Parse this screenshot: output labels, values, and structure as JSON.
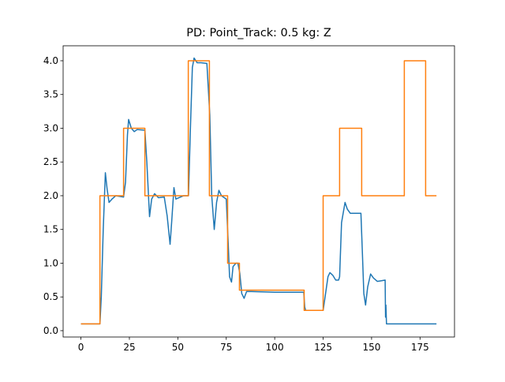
{
  "chart_data": {
    "type": "line",
    "title": "PD: Point_Track: 0.5 kg: Z",
    "xlim": [
      -9.2,
      192.8
    ],
    "ylim": [
      -0.094,
      4.222
    ],
    "xticks": [
      0,
      25,
      50,
      75,
      100,
      125,
      150,
      175
    ],
    "yticks": [
      {
        "value": 0,
        "label": "0.0"
      },
      {
        "value": 0.5,
        "label": "0.5"
      },
      {
        "value": 1,
        "label": "1.0"
      },
      {
        "value": 1.5,
        "label": "1.5"
      },
      {
        "value": 2,
        "label": "2.0"
      },
      {
        "value": 2.5,
        "label": "2.5"
      },
      {
        "value": 3,
        "label": "3.0"
      },
      {
        "value": 3.5,
        "label": "3.5"
      },
      {
        "value": 4,
        "label": "4.0"
      }
    ],
    "series": [
      {
        "color": "#1f77b4",
        "x": [
          0,
          9.8,
          10.5,
          11.5,
          12.6,
          13.5,
          14.5,
          16,
          18,
          22,
          23,
          24,
          24.6,
          26,
          27.5,
          29,
          33,
          34,
          35.4,
          36.5,
          38,
          40,
          43,
          44.5,
          46,
          46.8,
          48,
          49,
          50.5,
          53,
          55.5,
          56.5,
          57.5,
          58.4,
          60,
          62,
          65,
          66.5,
          67.5,
          68.8,
          70,
          71.2,
          72.5,
          74,
          75,
          76,
          76.7,
          77.7,
          78.5,
          80,
          81,
          82,
          83,
          84.2,
          85.5,
          88,
          100,
          115,
          115.5,
          116,
          125,
          126,
          127.5,
          128.5,
          130,
          131.5,
          133,
          133.5,
          134.5,
          136.3,
          137.5,
          139,
          144.5,
          145.2,
          146,
          146.9,
          148,
          149.5,
          151,
          153,
          155,
          157,
          157.2,
          157.4,
          157.7,
          159,
          183.5
        ],
        "values": [
          0.1,
          0.1,
          0.5,
          1.5,
          2.34,
          2.1,
          1.9,
          1.95,
          2.0,
          1.98,
          2.2,
          2.9,
          3.13,
          3.0,
          2.95,
          2.98,
          2.97,
          2.5,
          1.69,
          1.95,
          2.03,
          1.97,
          1.98,
          1.7,
          1.28,
          1.6,
          2.12,
          1.95,
          1.97,
          2.0,
          2.0,
          3.0,
          3.9,
          4.04,
          3.97,
          3.97,
          3.96,
          3.2,
          2.0,
          1.5,
          1.9,
          2.08,
          2.0,
          1.97,
          1.95,
          1.3,
          0.8,
          0.72,
          0.95,
          1.0,
          1.0,
          0.85,
          0.55,
          0.48,
          0.58,
          0.58,
          0.57,
          0.57,
          0.35,
          0.3,
          0.3,
          0.5,
          0.8,
          0.86,
          0.82,
          0.75,
          0.75,
          0.8,
          1.6,
          1.9,
          1.8,
          1.74,
          1.74,
          1.2,
          0.55,
          0.38,
          0.65,
          0.84,
          0.78,
          0.73,
          0.74,
          0.75,
          0.2,
          0.38,
          0.1,
          0.1,
          0.1
        ]
      },
      {
        "color": "#ff7f0e",
        "x": [
          0,
          9.8,
          9.8,
          22,
          22,
          33,
          33,
          55.4,
          55.4,
          66.3,
          66.3,
          75.7,
          75.7,
          81.8,
          81.8,
          115.2,
          115.2,
          125,
          125,
          133.5,
          133.5,
          144.9,
          144.9,
          166.9,
          166.9,
          177.9,
          177.9,
          183.5
        ],
        "values": [
          0.1,
          0.1,
          2,
          2,
          3,
          3,
          2,
          2,
          4,
          4,
          2,
          2,
          1,
          1,
          0.6,
          0.6,
          0.3,
          0.3,
          2,
          2,
          3,
          3,
          2,
          2,
          4,
          4,
          2,
          2
        ]
      }
    ]
  }
}
